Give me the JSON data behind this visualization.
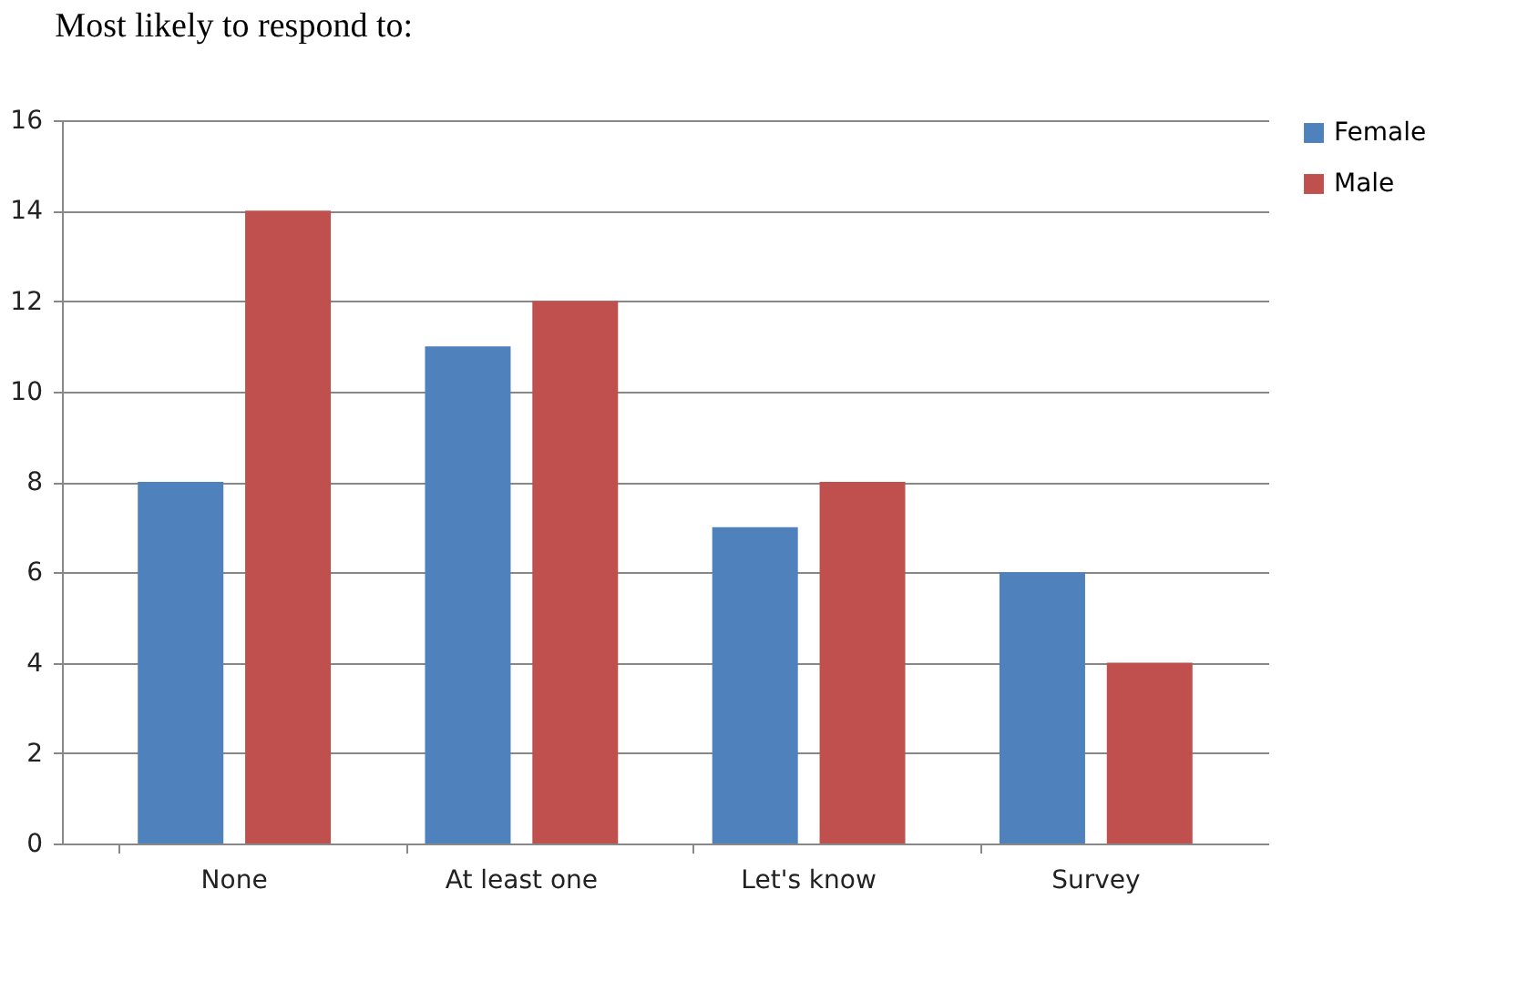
{
  "chart_data": {
    "type": "bar",
    "title": "Most likely to respond to:",
    "categories": [
      "None",
      "At least one",
      "Let's know",
      "Survey"
    ],
    "series": [
      {
        "name": "Female",
        "color": "#4f81bd",
        "values": [
          8,
          11,
          7,
          6
        ]
      },
      {
        "name": "Male",
        "color": "#c0504d",
        "values": [
          14,
          12,
          8,
          4
        ]
      }
    ],
    "ylim": [
      0,
      16
    ],
    "yticks": [
      0,
      2,
      4,
      6,
      8,
      10,
      12,
      14,
      16
    ],
    "grid": "y",
    "legend": "right"
  }
}
